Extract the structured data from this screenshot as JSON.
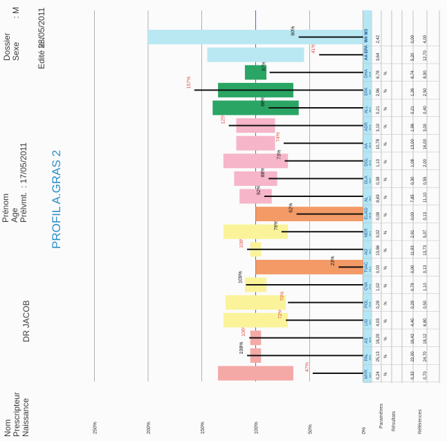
{
  "header": {
    "labels": [
      "Nom",
      "Prescripteur",
      "Naissance"
    ],
    "prescriber": "DR JACOB",
    "patient_labels": [
      "Prénom",
      "Age",
      "Prélvmt."
    ],
    "sample_date": ": 17/05/2011",
    "dossier_labels": [
      "Dossier",
      "Sexe"
    ],
    "sex": ": M",
    "edited_label": "Edité le :",
    "edited_date": "23/05/2011",
    "title": "PROFIL A.GRAS 2"
  },
  "row_labels": {
    "parametres": "Paramètres",
    "resultats": "Résultats",
    "references": "Références"
  },
  "chart_data": {
    "type": "bar",
    "ylim": [
      0,
      250
    ],
    "yticks": [
      "0%",
      "50%",
      "100%",
      "150%",
      "200%",
      "250%"
    ],
    "categories": [
      "MYR",
      "PAL",
      "AS",
      "LIG",
      "POL",
      "CVA",
      "TVAC",
      "AO",
      "NER",
      "ELAID",
      "AL",
      "GLA",
      "DGL",
      "AA",
      "ADR",
      "ALL",
      "EPA",
      "DHA",
      "AA EPA",
      "W6 W3"
    ],
    "subs": [
      "14:0",
      "16:0",
      "18:0",
      "24:0",
      "22:6",
      "22:0",
      "16:1",
      "18:1",
      "24:1",
      "18:1t",
      "18:2",
      "18:3",
      "20:3",
      "20:4",
      "22:4",
      "18:3",
      "20:5",
      "22:6",
      "",
      ""
    ],
    "results": [
      "0,24",
      "25,13",
      "18,29",
      "4,03",
      "0,28",
      "1,02",
      "0,03",
      "13,86",
      "3,02",
      "0,08",
      "8,69",
      "0,38",
      "1,13",
      "10,78",
      "3,10",
      "0,21",
      "2,96",
      "6,78",
      "3,64",
      "2,42"
    ],
    "units": [
      "%",
      "%",
      "%",
      "%",
      "%",
      "%",
      "%",
      "%",
      "%",
      "%",
      "%",
      "%",
      "%",
      "%",
      "%",
      "%",
      "%",
      "%",
      "",
      ""
    ],
    "ref_low": [
      "0,32",
      "22,00",
      "16,42",
      "4,40",
      "0,29",
      "0,79",
      "0,00",
      "11,93",
      "2,91",
      "0,00",
      "7,85",
      "0,30",
      "1,08",
      "13,00",
      "1,96",
      "0,21",
      "1,26",
      "6,74",
      "5,20",
      "0,00"
    ],
    "ref_high": [
      "0,70",
      "24,70",
      "18,12",
      "6,80",
      "0,50",
      "1,10",
      "0,13",
      "13,73",
      "5,07",
      "0,13",
      "11,10",
      "0,55",
      "2,00",
      "16,00",
      "3,00",
      "0,40",
      "2,50",
      "8,90",
      "12,70",
      "4,00"
    ],
    "pct_labels": [
      "47%",
      "108%",
      "106%",
      "72%",
      "70%",
      "109%",
      "23%",
      "108%",
      "76%",
      "62%",
      "92%",
      "88%",
      "73%",
      "74%",
      "125%",
      "88%",
      "157%",
      "87%",
      "41%",
      "60%"
    ],
    "result_pct": [
      47,
      108,
      106,
      72,
      70,
      109,
      23,
      108,
      76,
      62,
      92,
      88,
      73,
      74,
      125,
      88,
      157,
      87,
      41,
      60
    ],
    "range_low_pct": [
      65,
      95,
      95,
      70,
      72,
      90,
      0,
      95,
      70,
      0,
      85,
      80,
      70,
      82,
      82,
      60,
      65,
      90,
      55,
      0
    ],
    "range_high_pct": [
      135,
      105,
      105,
      130,
      128,
      110,
      100,
      105,
      130,
      100,
      115,
      120,
      130,
      118,
      118,
      140,
      135,
      110,
      145,
      200
    ],
    "bar_colors": [
      "#f4a9a6",
      "#f4a9a6",
      "#f4a9a6",
      "#faf39a",
      "#faf39a",
      "#faf39a",
      "#f39a66",
      "#faf39a",
      "#faf39a",
      "#f39a66",
      "#f6b5c9",
      "#f6b5c9",
      "#f6b5c9",
      "#f6b5c9",
      "#f6b5c9",
      "#2aa564",
      "#2aa564",
      "#2aa564",
      "#b9e8f2",
      "#b9e8f2"
    ],
    "pct_colors": [
      "red",
      "black",
      "red",
      "red",
      "red",
      "black",
      "black",
      "red",
      "black",
      "black",
      "black",
      "black",
      "black",
      "red",
      "red",
      "black",
      "red",
      "black",
      "red",
      "black"
    ],
    "bold_cats": [
      false,
      false,
      false,
      false,
      false,
      false,
      false,
      false,
      false,
      false,
      false,
      false,
      false,
      false,
      false,
      false,
      false,
      false,
      true,
      true
    ]
  }
}
